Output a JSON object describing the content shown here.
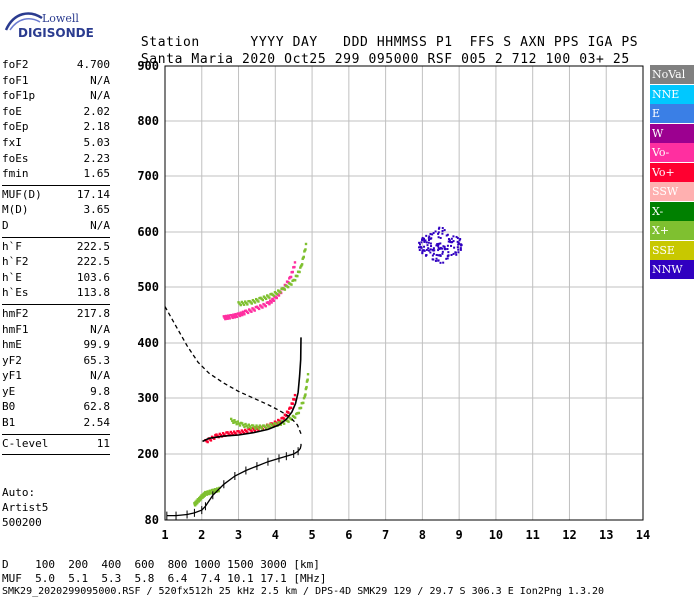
{
  "logo": {
    "line1": "Lowell",
    "line2": "DIGISONDE"
  },
  "header": {
    "row1": [
      "Station",
      "YYYY",
      "DAY",
      "DDD",
      "HHMMSS",
      "P1",
      "FFS",
      "S",
      "AXN",
      "PPS",
      "IGA",
      "PS"
    ],
    "row2": [
      "Santa Maria",
      "2020",
      "Oct25",
      "299",
      "095000",
      "RSF",
      "005",
      "2",
      "712",
      "100",
      "03+",
      "25"
    ]
  },
  "params": [
    {
      "label": "foF2",
      "value": "4.700"
    },
    {
      "label": "foF1",
      "value": "N/A"
    },
    {
      "label": "foF1p",
      "value": "N/A"
    },
    {
      "label": "foE",
      "value": "2.02"
    },
    {
      "label": "foEp",
      "value": "2.18"
    },
    {
      "label": "fxI",
      "value": "5.03"
    },
    {
      "label": "foEs",
      "value": "2.23"
    },
    {
      "label": "fmin",
      "value": "1.65"
    },
    {
      "sep": true
    },
    {
      "label": "MUF(D)",
      "value": "17.14"
    },
    {
      "label": "M(D)",
      "value": "3.65"
    },
    {
      "label": "D",
      "value": "N/A"
    },
    {
      "sep": true
    },
    {
      "label": "h`F",
      "value": "222.5"
    },
    {
      "label": "h`F2",
      "value": "222.5"
    },
    {
      "label": "h`E",
      "value": "103.6"
    },
    {
      "label": "h`Es",
      "value": "113.8"
    },
    {
      "sep": true
    },
    {
      "label": "hmF2",
      "value": "217.8"
    },
    {
      "label": "hmF1",
      "value": "N/A"
    },
    {
      "label": "hmE",
      "value": "99.9"
    },
    {
      "label": "yF2",
      "value": "65.3"
    },
    {
      "label": "yF1",
      "value": "N/A"
    },
    {
      "label": "yE",
      "value": "9.8"
    },
    {
      "label": "B0",
      "value": "62.8"
    },
    {
      "label": "B1",
      "value": "2.54"
    },
    {
      "sep": true
    },
    {
      "label": "C-level",
      "value": "11"
    },
    {
      "sep": true
    }
  ],
  "auto": [
    "Auto:",
    "Artist5",
    "500200"
  ],
  "legend": [
    {
      "label": "NoVal",
      "color": "#808080"
    },
    {
      "label": "NNE",
      "color": "#00c8ff"
    },
    {
      "label": "E",
      "color": "#3a7fe6"
    },
    {
      "label": "W",
      "color": "#9c0090"
    },
    {
      "label": "Vo-",
      "color": "#ff2fa0"
    },
    {
      "label": "Vo+",
      "color": "#ff0030"
    },
    {
      "label": "SSW",
      "color": "#ffb0b0"
    },
    {
      "label": "X-",
      "color": "#008000"
    },
    {
      "label": "X+",
      "color": "#7fc030"
    },
    {
      "label": "SSE",
      "color": "#c8c800"
    },
    {
      "label": "NNW",
      "color": "#3000c0"
    }
  ],
  "footer": {
    "row1": "D    100  200  400  600  800 1000 1500 3000 [km]",
    "row2": "MUF  5.0  5.1  5.3  5.8  6.4  7.4 10.1 17.1 [MHz]",
    "row3": "SMK29_2020299095000.RSF / 520fx512h 25 kHz 2.5 km / DPS-4D SMK29 129 / 29.7 S 306.3 E Ion2Png 1.3.20"
  },
  "chart_data": {
    "type": "scatter",
    "title": "",
    "xlabel": "",
    "ylabel": "",
    "xlim": [
      1,
      14
    ],
    "ylim": [
      80,
      900
    ],
    "xticks": [
      1,
      2,
      3,
      4,
      5,
      6,
      7,
      8,
      9,
      10,
      11,
      12,
      13,
      14
    ],
    "yticks": [
      80,
      200,
      300,
      400,
      500,
      600,
      700,
      800,
      900
    ],
    "grid": true,
    "profile_curve": {
      "name": "",
      "x": [
        1.05,
        1.3,
        1.6,
        1.8,
        2.0,
        2.1,
        2.3,
        2.6,
        2.9,
        3.2,
        3.5,
        3.8,
        4.1,
        4.3,
        4.5,
        4.62,
        4.68,
        4.7,
        4.7
      ],
      "y": [
        88,
        88,
        90,
        93,
        98,
        105,
        125,
        145,
        160,
        170,
        178,
        186,
        192,
        196,
        200,
        205,
        210,
        215,
        218
      ]
    },
    "virtual_height_trace": {
      "name": "",
      "x": [
        2.02,
        2.2,
        2.6,
        3.0,
        3.4,
        3.8,
        4.1,
        4.3,
        4.45,
        4.55,
        4.62,
        4.66,
        4.69,
        4.7
      ],
      "y": [
        222.5,
        228,
        232,
        234,
        238,
        244,
        252,
        262,
        275,
        290,
        310,
        340,
        370,
        410
      ]
    },
    "scale_height_curve": {
      "name": "",
      "x": [
        1.0,
        1.3,
        1.6,
        1.9,
        2.2,
        2.6,
        3.0,
        3.4,
        3.8,
        4.1,
        4.4,
        4.6,
        4.7
      ],
      "y": [
        465,
        430,
        395,
        365,
        345,
        327,
        312,
        300,
        288,
        278,
        266,
        252,
        236
      ]
    },
    "echo_traces": [
      {
        "series": "Vo+",
        "x": [
          2.1,
          2.4,
          2.7,
          3.0,
          3.3,
          3.6,
          3.9,
          4.2,
          4.4,
          4.55
        ],
        "y": [
          222,
          232,
          236,
          238,
          242,
          246,
          252,
          262,
          280,
          305
        ]
      },
      {
        "series": "Vo-",
        "x": [
          2.6,
          2.8,
          3.0,
          3.2,
          3.5,
          3.8,
          4.0,
          4.2,
          4.4,
          4.55
        ],
        "y": [
          445,
          447,
          450,
          455,
          462,
          470,
          480,
          495,
          515,
          545
        ]
      },
      {
        "series": "X+",
        "x": [
          2.8,
          3.1,
          3.4,
          3.7,
          4.0,
          4.3,
          4.6,
          4.8,
          4.9
        ],
        "y": [
          260,
          252,
          248,
          248,
          252,
          258,
          270,
          300,
          345
        ]
      },
      {
        "series": "X+",
        "x": [
          3.0,
          3.3,
          3.6,
          3.9,
          4.2,
          4.5,
          4.7,
          4.85
        ],
        "y": [
          470,
          472,
          478,
          485,
          495,
          510,
          535,
          580
        ]
      },
      {
        "series": "X+",
        "x": [
          1.8,
          1.9,
          2.0,
          2.1,
          2.3,
          2.5
        ],
        "y": [
          108,
          115,
          122,
          128,
          132,
          136
        ]
      }
    ],
    "nnw_cluster": {
      "series": "NNW",
      "center_x": 8.5,
      "center_y": 575,
      "spread_x": 0.6,
      "spread_y": 35
    }
  }
}
